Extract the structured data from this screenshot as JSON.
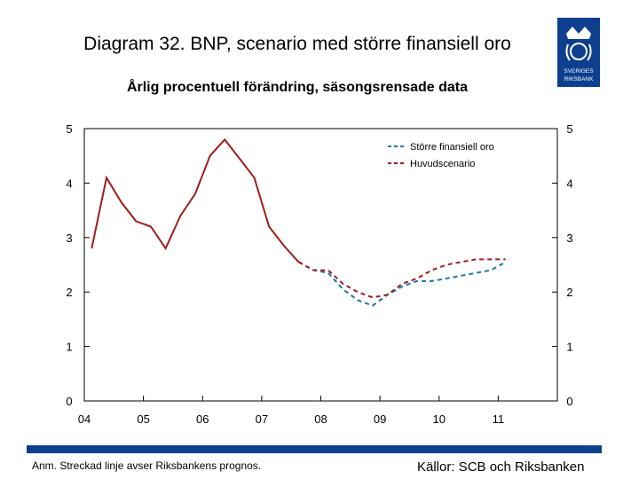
{
  "header": {
    "title": "Diagram 32. BNP, scenario med större finansiell oro",
    "subtitle": "Årlig procentuell förändring, säsongsrensade data"
  },
  "logo": {
    "icon": "riksbank-crest-icon",
    "text_line1": "SVERIGES",
    "text_line2": "RIKSBANK",
    "color": "#0d3f8f"
  },
  "footer": {
    "note": "Anm. Streckad linje avser Riksbankens prognos.",
    "source": "Källor: SCB och Riksbanken",
    "bar_color": "#0d3f8f"
  },
  "chart_data": {
    "type": "line",
    "title": "Diagram 32. BNP, scenario med större finansiell oro",
    "subtitle": "Årlig procentuell förändring, säsongsrensade data",
    "ylim": [
      0,
      5
    ],
    "yticks": [
      0,
      1,
      2,
      3,
      4,
      5
    ],
    "xlim": [
      2004.0,
      2012.0
    ],
    "xticks": [
      {
        "value": 2004.0,
        "label": "04"
      },
      {
        "value": 2005.0,
        "label": "05"
      },
      {
        "value": 2006.0,
        "label": "06"
      },
      {
        "value": 2007.0,
        "label": "07"
      },
      {
        "value": 2008.0,
        "label": "08"
      },
      {
        "value": 2009.0,
        "label": "09"
      },
      {
        "value": 2010.0,
        "label": "10"
      },
      {
        "value": 2011.0,
        "label": "11"
      }
    ],
    "grid": false,
    "legend_position": "top-right",
    "outcome": {
      "color": "#a01c1c",
      "x": [
        2004.125,
        2004.375,
        2004.625,
        2004.875,
        2005.125,
        2005.375,
        2005.625,
        2005.875,
        2006.125,
        2006.375,
        2006.625,
        2006.875,
        2007.125,
        2007.375,
        2007.625
      ],
      "y": [
        2.8,
        4.1,
        3.65,
        3.3,
        3.2,
        2.8,
        3.4,
        3.8,
        4.5,
        4.8,
        4.45,
        4.1,
        3.2,
        2.85,
        2.55
      ]
    },
    "series": [
      {
        "name": "Större finansiell oro",
        "color": "#1f74a8",
        "style": "dashed",
        "x": [
          2007.625,
          2007.875,
          2008.125,
          2008.375,
          2008.625,
          2008.875,
          2009.125,
          2009.375,
          2009.625,
          2009.875,
          2010.125,
          2010.375,
          2010.625,
          2010.875,
          2011.125
        ],
        "y": [
          2.55,
          2.4,
          2.35,
          2.05,
          1.85,
          1.75,
          1.95,
          2.1,
          2.2,
          2.2,
          2.25,
          2.3,
          2.35,
          2.4,
          2.55
        ]
      },
      {
        "name": "Huvudscenario",
        "color": "#a01c1c",
        "style": "dashed",
        "x": [
          2007.625,
          2007.875,
          2008.125,
          2008.375,
          2008.625,
          2008.875,
          2009.125,
          2009.375,
          2009.625,
          2009.875,
          2010.125,
          2010.375,
          2010.625,
          2010.875,
          2011.125
        ],
        "y": [
          2.55,
          2.4,
          2.4,
          2.15,
          2.0,
          1.9,
          1.95,
          2.15,
          2.25,
          2.4,
          2.5,
          2.55,
          2.6,
          2.6,
          2.6
        ]
      }
    ]
  }
}
